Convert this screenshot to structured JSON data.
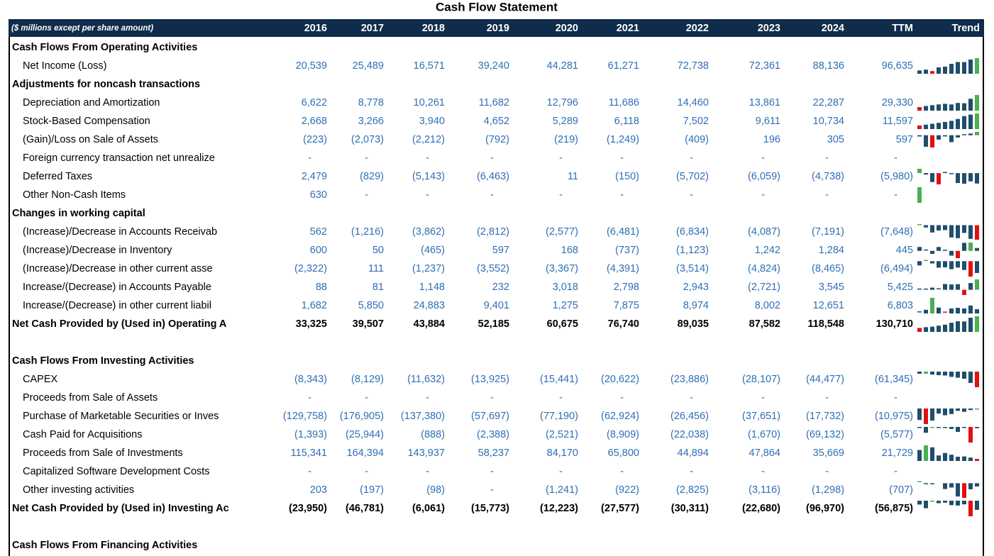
{
  "title": "Cash Flow Statement",
  "header": [
    "($ millions except per share amount)",
    "2016",
    "2017",
    "2018",
    "2019",
    "2020",
    "2021",
    "2022",
    "2023",
    "2024",
    "TTM",
    "Trend"
  ],
  "trend_colors": {
    "bar": "#1f4e6b",
    "high": "#4caf50",
    "low": "#e31010"
  },
  "rows": [
    {
      "kind": "heading",
      "label": "Cash Flows From Operating Activities"
    },
    {
      "kind": "item",
      "label": "Net Income (Loss)",
      "cells": [
        "20,539",
        "25,489",
        "16,571",
        "39,240",
        "44,281",
        "61,271",
        "72,738",
        "72,361",
        "88,136",
        "96,635"
      ]
    },
    {
      "kind": "heading",
      "label": "Adjustments for noncash transactions"
    },
    {
      "kind": "item",
      "label": "Depreciation and Amortization",
      "cells": [
        "6,622",
        "8,778",
        "10,261",
        "11,682",
        "12,796",
        "11,686",
        "14,460",
        "13,861",
        "22,287",
        "29,330"
      ]
    },
    {
      "kind": "item",
      "label": "Stock-Based Compensation",
      "cells": [
        "2,668",
        "3,266",
        "3,940",
        "4,652",
        "5,289",
        "6,118",
        "7,502",
        "9,611",
        "10,734",
        "11,597"
      ]
    },
    {
      "kind": "item",
      "label": "(Gain)/Loss on Sale of Assets",
      "cells": [
        "(223)",
        "(2,073)",
        "(2,212)",
        "(792)",
        "(219)",
        "(1,249)",
        "(409)",
        "196",
        "305",
        "597"
      ]
    },
    {
      "kind": "item",
      "label": "Foreign currency transaction net unrealize",
      "cells": [
        "-",
        "-",
        "-",
        "-",
        "-",
        "-",
        "-",
        "-",
        "-",
        "-"
      ]
    },
    {
      "kind": "item",
      "label": "Deferred Taxes",
      "cells": [
        "2,479",
        "(829)",
        "(5,143)",
        "(6,463)",
        "11",
        "(150)",
        "(5,702)",
        "(6,059)",
        "(4,738)",
        "(5,980)"
      ]
    },
    {
      "kind": "item",
      "label": "Other Non-Cash Items",
      "cells": [
        "630",
        "-",
        "-",
        "-",
        "-",
        "-",
        "-",
        "-",
        "-",
        "-"
      ]
    },
    {
      "kind": "heading",
      "label": "Changes in working capital"
    },
    {
      "kind": "item",
      "label": "(Increase)/Decrease in Accounts Receivab",
      "cells": [
        "562",
        "(1,216)",
        "(3,862)",
        "(2,812)",
        "(2,577)",
        "(6,481)",
        "(6,834)",
        "(4,087)",
        "(7,191)",
        "(7,648)"
      ]
    },
    {
      "kind": "item",
      "label": "(Increase)/Decrease in Inventory",
      "cells": [
        "600",
        "50",
        "(465)",
        "597",
        "168",
        "(737)",
        "(1,123)",
        "1,242",
        "1,284",
        "445"
      ]
    },
    {
      "kind": "item",
      "label": "(Increase)/Decrease in other current asse",
      "cells": [
        "(2,322)",
        "111",
        "(1,237)",
        "(3,552)",
        "(3,367)",
        "(4,391)",
        "(3,514)",
        "(4,824)",
        "(8,465)",
        "(6,494)"
      ]
    },
    {
      "kind": "item",
      "label": "Increase/(Decrease) in Accounts Payable",
      "cells": [
        "88",
        "81",
        "1,148",
        "232",
        "3,018",
        "2,798",
        "2,943",
        "(2,721)",
        "3,545",
        "5,425"
      ]
    },
    {
      "kind": "item",
      "label": "Increase/(Decrease) in other current liabil",
      "cells": [
        "1,682",
        "5,850",
        "24,883",
        "9,401",
        "1,275",
        "7,875",
        "8,974",
        "8,002",
        "12,651",
        "6,803"
      ]
    },
    {
      "kind": "total",
      "label": "Net Cash Provided by (Used in) Operating A",
      "cells": [
        "33,325",
        "39,507",
        "43,884",
        "52,185",
        "60,675",
        "76,740",
        "89,035",
        "87,582",
        "118,548",
        "130,710"
      ]
    },
    {
      "kind": "heading",
      "label": "Cash Flows From Investing Activities"
    },
    {
      "kind": "item",
      "label": "CAPEX",
      "cells": [
        "(8,343)",
        "(8,129)",
        "(11,632)",
        "(13,925)",
        "(15,441)",
        "(20,622)",
        "(23,886)",
        "(28,107)",
        "(44,477)",
        "(61,345)"
      ]
    },
    {
      "kind": "item",
      "label": "Proceeds from Sale of Assets",
      "cells": [
        "-",
        "-",
        "-",
        "-",
        "-",
        "-",
        "-",
        "-",
        "-",
        "-"
      ]
    },
    {
      "kind": "item",
      "label": "Purchase of Marketable Securities or Inves",
      "cells": [
        "(129,758)",
        "(176,905)",
        "(137,380)",
        "(57,697)",
        "(77,190)",
        "(62,924)",
        "(26,456)",
        "(37,651)",
        "(17,732)",
        "(10,975)"
      ]
    },
    {
      "kind": "item",
      "label": "Cash Paid for Acquisitions",
      "cells": [
        "(1,393)",
        "(25,944)",
        "(888)",
        "(2,388)",
        "(2,521)",
        "(8,909)",
        "(22,038)",
        "(1,670)",
        "(69,132)",
        "(5,577)"
      ]
    },
    {
      "kind": "item",
      "label": "Proceeds from Sale of Investments",
      "cells": [
        "115,341",
        "164,394",
        "143,937",
        "58,237",
        "84,170",
        "65,800",
        "44,894",
        "47,864",
        "35,669",
        "21,729"
      ]
    },
    {
      "kind": "item",
      "label": "Capitalized Software Development Costs",
      "cells": [
        "-",
        "-",
        "-",
        "-",
        "-",
        "-",
        "-",
        "-",
        "-",
        "-"
      ]
    },
    {
      "kind": "item",
      "label": "Other investing activities",
      "cells": [
        "203",
        "(197)",
        "(98)",
        "-",
        "(1,241)",
        "(922)",
        "(2,825)",
        "(3,116)",
        "(1,298)",
        "(707)"
      ]
    },
    {
      "kind": "total",
      "label": "Net Cash Provided by (Used in) Investing Ac",
      "cells": [
        "(23,950)",
        "(46,781)",
        "(6,061)",
        "(15,773)",
        "(12,223)",
        "(27,577)",
        "(30,311)",
        "(22,680)",
        "(96,970)",
        "(56,875)"
      ]
    },
    {
      "kind": "heading",
      "label": "Cash Flows From Financing Activities"
    }
  ]
}
